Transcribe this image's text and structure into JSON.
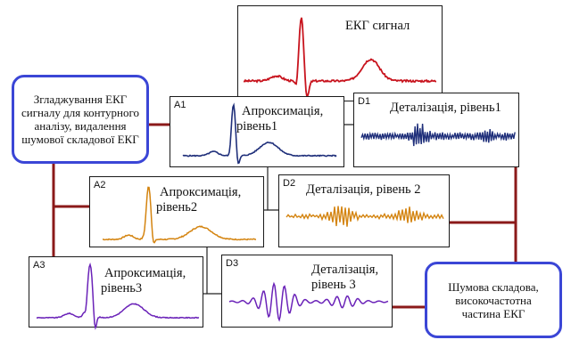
{
  "colors": {
    "connector": "#8b1a1a",
    "note_border": "#3b46d6",
    "signal": "#c8141e",
    "approx1": "#1f2f7a",
    "detail1": "#1f2f7a",
    "approx2": "#d48410",
    "detail2": "#d48410",
    "approx3": "#6a22b8",
    "detail3": "#6a22b8"
  },
  "signal": {
    "title": "ЕКГ сигнал"
  },
  "level1": {
    "a_tag": "A1",
    "a_title_1": "Апроксимація,",
    "a_title_2": "рівень1",
    "d_tag": "D1",
    "d_title": "Деталізація, рівень1"
  },
  "level2": {
    "a_tag": "A2",
    "a_title_1": "Апроксимація,",
    "a_title_2": "рівень2",
    "d_tag": "D2",
    "d_title": "Деталізація, рівень 2"
  },
  "level3": {
    "a_tag": "A3",
    "a_title_1": "Апроксимація,",
    "a_title_2": "рівень3",
    "d_tag": "D3",
    "d_title_1": "Деталізація,",
    "d_title_2": "рівень 3"
  },
  "notes": {
    "smoothing": "Згладжування ЕКГ сигналу для контурного аналізу, видалення шумової складової ЕКГ",
    "noise": "Шумова складова, високочастотна частина ЕКГ"
  }
}
